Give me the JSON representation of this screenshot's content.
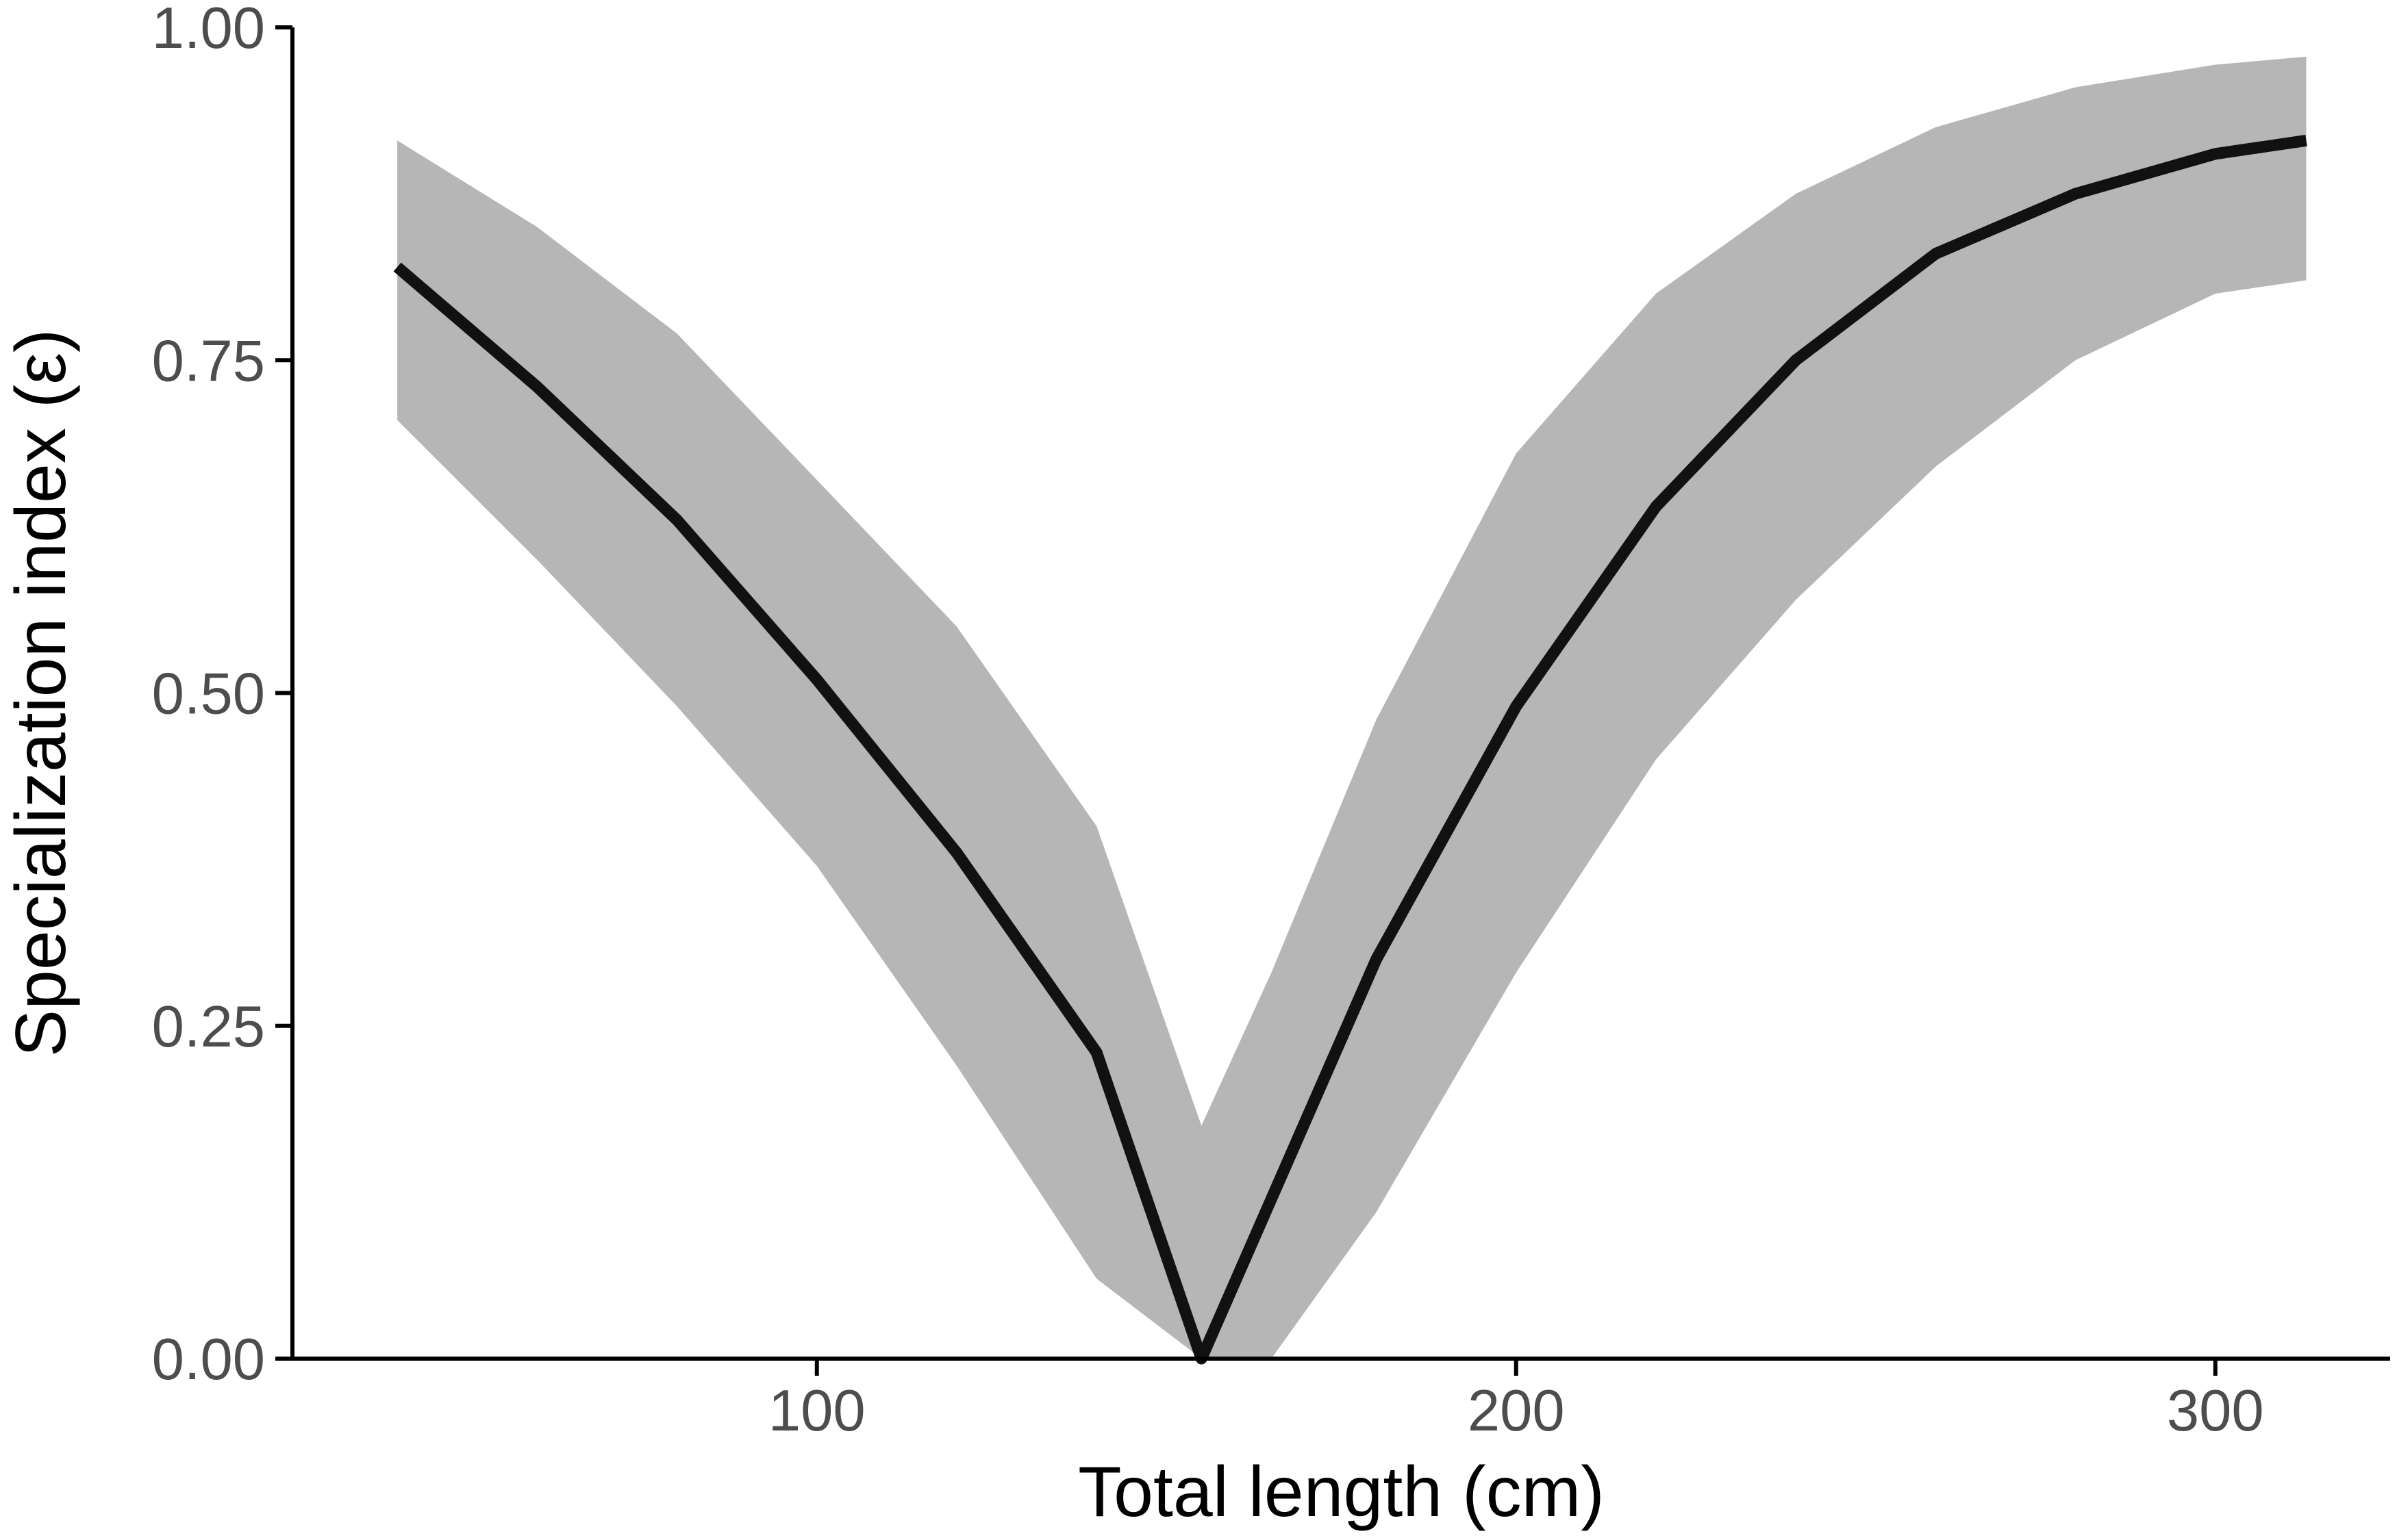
{
  "chart_data": {
    "type": "line",
    "title": "",
    "xlabel": "Total length (cm)",
    "ylabel": "Specialization index (ε)",
    "xlim": [
      25,
      325
    ],
    "ylim": [
      0,
      1
    ],
    "xticks": [
      100,
      200,
      300
    ],
    "xtick_labels": [
      "100",
      "200",
      "300"
    ],
    "yticks": [
      0,
      0.25,
      0.5,
      0.75,
      1
    ],
    "ytick_labels": [
      "0.00",
      "0.25",
      "0.50",
      "0.75",
      "1.00"
    ],
    "grid": false,
    "legend": "none",
    "colors": {
      "line": "#111111",
      "band": "#b6b6b6",
      "axis": "#000000",
      "tick_label": "#4d4d4d"
    },
    "series": [
      {
        "x": [
          40,
          60,
          80,
          100,
          120,
          140,
          155,
          165,
          180,
          200,
          220,
          240,
          260,
          280,
          300,
          313
        ],
        "y": [
          0.82,
          0.73,
          0.63,
          0.51,
          0.38,
          0.23,
          0.0,
          0.12,
          0.3,
          0.49,
          0.64,
          0.75,
          0.83,
          0.875,
          0.905,
          0.915
        ],
        "lower": [
          0.705,
          0.6,
          0.49,
          0.37,
          0.22,
          0.06,
          0.0,
          0.0,
          0.11,
          0.29,
          0.45,
          0.57,
          0.67,
          0.75,
          0.8,
          0.81
        ],
        "upper": [
          0.915,
          0.85,
          0.77,
          0.66,
          0.55,
          0.4,
          0.175,
          0.29,
          0.48,
          0.68,
          0.8,
          0.875,
          0.925,
          0.955,
          0.972,
          0.978
        ]
      }
    ]
  }
}
